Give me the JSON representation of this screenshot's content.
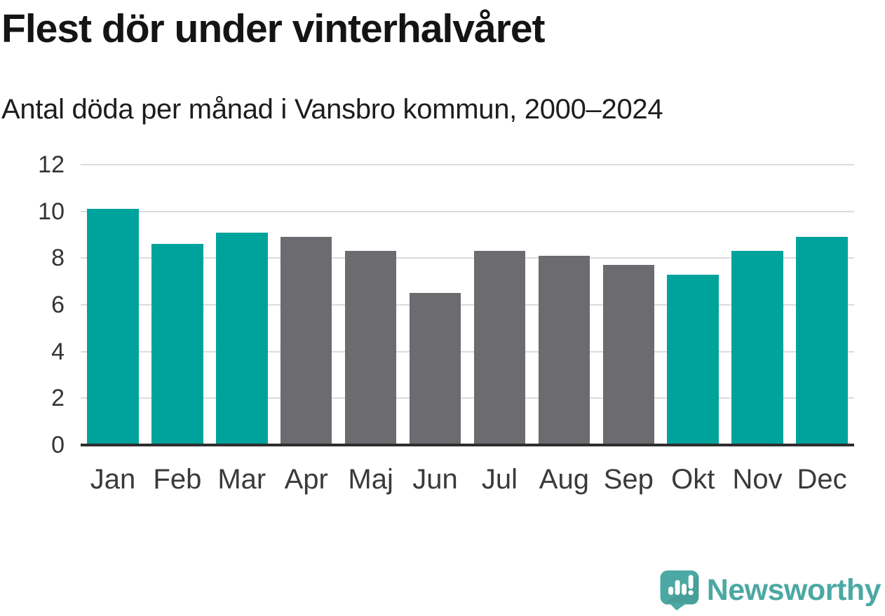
{
  "header": {
    "title": "Flest dör under vinterhalvåret",
    "subtitle": "Antal döda per månad i Vansbro kommun, 2000–2024"
  },
  "chart_data": {
    "type": "bar",
    "title": "Flest dör under vinterhalvåret",
    "subtitle": "Antal döda per månad i Vansbro kommun, 2000–2024",
    "categories": [
      "Jan",
      "Feb",
      "Mar",
      "Apr",
      "Maj",
      "Jun",
      "Jul",
      "Aug",
      "Sep",
      "Okt",
      "Nov",
      "Dec"
    ],
    "values": [
      10.1,
      8.6,
      9.1,
      8.9,
      8.3,
      6.5,
      8.3,
      8.1,
      7.7,
      7.3,
      8.3,
      8.9
    ],
    "bar_colors": [
      "#00a39b",
      "#00a39b",
      "#00a39b",
      "#6b6b70",
      "#6b6b70",
      "#6b6b70",
      "#6b6b70",
      "#6b6b70",
      "#6b6b70",
      "#00a39b",
      "#00a39b",
      "#00a39b"
    ],
    "highlight_color": "#00a39b",
    "base_color": "#6b6b70",
    "xlabel": "",
    "ylabel": "",
    "ylim": [
      0,
      12
    ],
    "yticks": [
      0,
      2,
      4,
      6,
      8,
      10,
      12
    ],
    "grid": "horizontal",
    "legend": "none"
  },
  "colors": {
    "gridline": "#dcdcdc",
    "axis_line": "#2e2e2e",
    "tick_label": "#333333"
  },
  "footer": {
    "logo_text": "Newsworthy",
    "logo_color": "#4ca8a3"
  }
}
